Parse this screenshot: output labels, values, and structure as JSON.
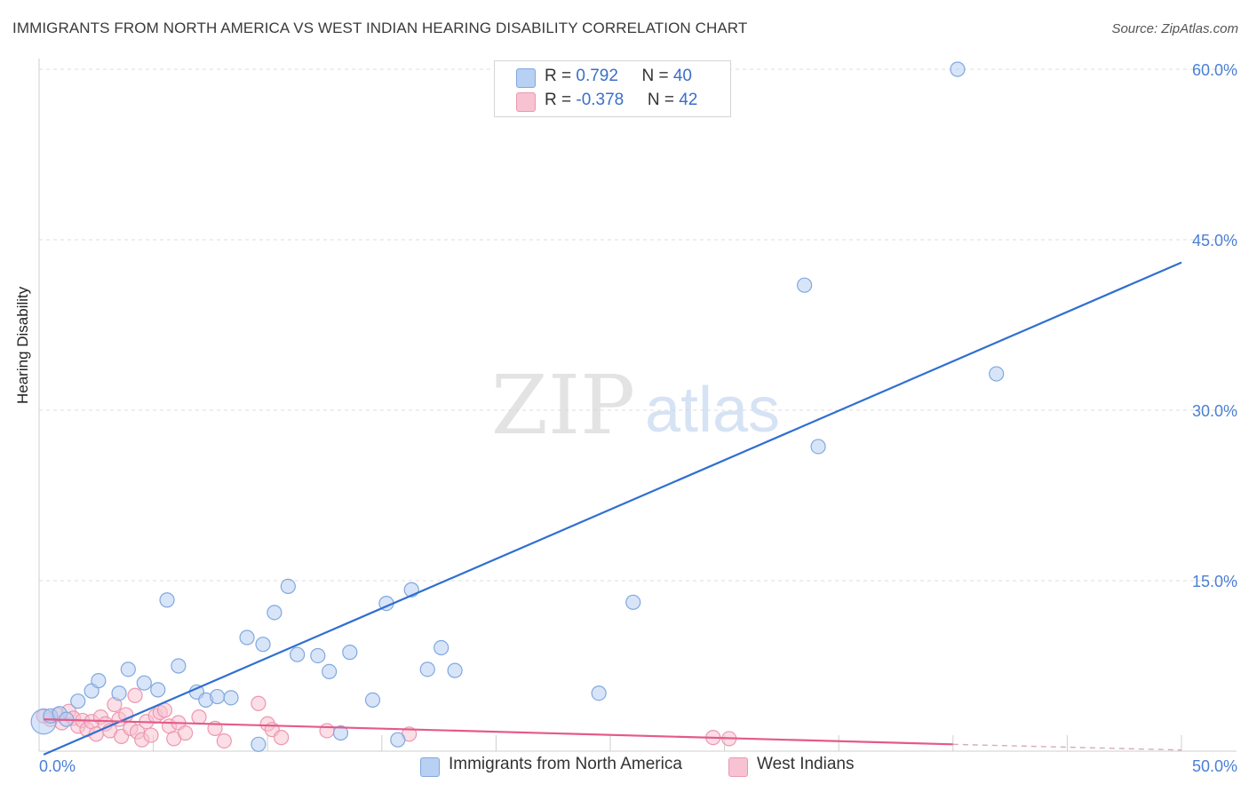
{
  "header": {
    "title": "IMMIGRANTS FROM NORTH AMERICA VS WEST INDIAN HEARING DISABILITY CORRELATION CHART",
    "source": "Source: ZipAtlas.com"
  },
  "watermark": {
    "zip": "ZIP",
    "atlas": "atlas"
  },
  "legend": {
    "rows": [
      {
        "r_label": "R = ",
        "r_value": "0.792",
        "n_label": "N = ",
        "n_value": "40",
        "color": "#b8d0f2"
      },
      {
        "r_label": "R = ",
        "r_value": "-0.378",
        "n_label": "N = ",
        "n_value": "42",
        "color": "#f7c3d2"
      }
    ]
  },
  "bottom_legend": {
    "series1": "Immigrants from North America",
    "series2": "West Indians"
  },
  "colors": {
    "blue_fill": "#b8d0f2",
    "blue_stroke": "#7fa8e0",
    "blue_line": "#2f6fd0",
    "pink_fill": "#f7c3d2",
    "pink_stroke": "#ec97b0",
    "pink_line": "#e45a8a",
    "grid": "#dcdcdc",
    "tick_label": "#4a7fd4"
  },
  "chart_data": {
    "type": "scatter",
    "title": "IMMIGRANTS FROM NORTH AMERICA VS WEST INDIAN HEARING DISABILITY CORRELATION CHART",
    "xlabel": "",
    "ylabel": "Hearing Disability",
    "xlim": [
      0,
      50
    ],
    "ylim": [
      0,
      60
    ],
    "x_tick_labels": [
      "0.0%",
      "50.0%"
    ],
    "y_ticks": [
      15,
      30,
      45,
      60
    ],
    "y_tick_labels": [
      "15.0%",
      "30.0%",
      "45.0%",
      "60.0%"
    ],
    "series": [
      {
        "name": "Immigrants from North America",
        "r": 0.792,
        "n": 40,
        "points": [
          [
            0.2,
            2.6
          ],
          [
            0.5,
            3.1
          ],
          [
            0.9,
            3.3
          ],
          [
            1.2,
            2.8
          ],
          [
            1.7,
            4.4
          ],
          [
            2.3,
            5.3
          ],
          [
            2.6,
            6.2
          ],
          [
            3.5,
            5.1
          ],
          [
            3.9,
            7.2
          ],
          [
            4.6,
            6.0
          ],
          [
            5.2,
            5.4
          ],
          [
            5.6,
            13.3
          ],
          [
            6.1,
            7.5
          ],
          [
            6.9,
            5.2
          ],
          [
            7.3,
            4.5
          ],
          [
            7.8,
            4.8
          ],
          [
            8.4,
            4.7
          ],
          [
            9.1,
            10.0
          ],
          [
            9.6,
            0.6
          ],
          [
            9.8,
            9.4
          ],
          [
            10.3,
            12.2
          ],
          [
            10.9,
            14.5
          ],
          [
            11.3,
            8.5
          ],
          [
            12.2,
            8.4
          ],
          [
            12.7,
            7.0
          ],
          [
            13.2,
            1.6
          ],
          [
            13.6,
            8.7
          ],
          [
            14.6,
            4.5
          ],
          [
            15.2,
            13.0
          ],
          [
            15.7,
            1.0
          ],
          [
            16.3,
            14.2
          ],
          [
            17.0,
            7.2
          ],
          [
            17.6,
            9.1
          ],
          [
            18.2,
            7.1
          ],
          [
            24.5,
            5.1
          ],
          [
            26.0,
            13.1
          ],
          [
            33.5,
            41.0
          ],
          [
            34.1,
            26.8
          ],
          [
            41.9,
            33.2
          ],
          [
            40.2,
            60.0
          ]
        ],
        "trend": {
          "x": [
            0.2,
            50.0
          ],
          "y": [
            -0.3,
            43.0
          ]
        }
      },
      {
        "name": "West Indians",
        "r": -0.378,
        "n": 42,
        "points": [
          [
            0.2,
            3.1
          ],
          [
            0.5,
            2.8
          ],
          [
            0.8,
            3.2
          ],
          [
            1.0,
            2.5
          ],
          [
            1.3,
            3.5
          ],
          [
            1.5,
            2.9
          ],
          [
            1.7,
            2.2
          ],
          [
            1.9,
            2.7
          ],
          [
            2.1,
            1.9
          ],
          [
            2.3,
            2.6
          ],
          [
            2.5,
            1.5
          ],
          [
            2.7,
            3.0
          ],
          [
            2.9,
            2.4
          ],
          [
            3.1,
            1.8
          ],
          [
            3.3,
            4.1
          ],
          [
            3.5,
            2.8
          ],
          [
            3.6,
            1.3
          ],
          [
            3.8,
            3.2
          ],
          [
            4.0,
            2.0
          ],
          [
            4.2,
            4.9
          ],
          [
            4.3,
            1.7
          ],
          [
            4.5,
            1.0
          ],
          [
            4.7,
            2.6
          ],
          [
            4.9,
            1.4
          ],
          [
            5.1,
            3.1
          ],
          [
            5.3,
            3.4
          ],
          [
            5.5,
            3.6
          ],
          [
            5.7,
            2.2
          ],
          [
            5.9,
            1.1
          ],
          [
            6.1,
            2.5
          ],
          [
            6.4,
            1.6
          ],
          [
            7.0,
            3.0
          ],
          [
            7.7,
            2.0
          ],
          [
            8.1,
            0.9
          ],
          [
            9.6,
            4.2
          ],
          [
            10.0,
            2.4
          ],
          [
            10.2,
            1.9
          ],
          [
            10.6,
            1.2
          ],
          [
            12.6,
            1.8
          ],
          [
            16.2,
            1.5
          ],
          [
            29.5,
            1.2
          ],
          [
            30.2,
            1.1
          ]
        ],
        "trend": {
          "x": [
            0.2,
            40.0
          ],
          "y": [
            2.8,
            0.6
          ]
        },
        "trend_extension": {
          "x": [
            40.0,
            50.0
          ],
          "y": [
            0.6,
            0.1
          ]
        }
      }
    ]
  }
}
